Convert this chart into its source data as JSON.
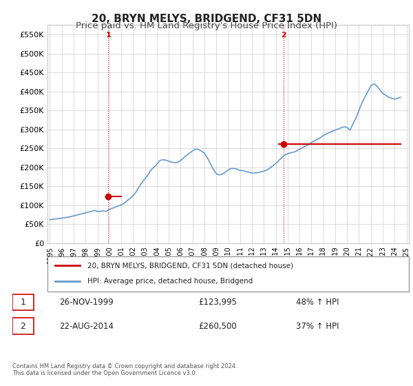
{
  "title": "20, BRYN MELYS, BRIDGEND, CF31 5DN",
  "subtitle": "Price paid vs. HM Land Registry's House Price Index (HPI)",
  "title_fontsize": 11,
  "subtitle_fontsize": 9.5,
  "xlabel": "",
  "ylabel": "",
  "ylim": [
    0,
    575000
  ],
  "yticks": [
    0,
    50000,
    100000,
    150000,
    200000,
    250000,
    300000,
    350000,
    400000,
    450000,
    500000,
    550000
  ],
  "ytick_labels": [
    "£0",
    "£50K",
    "£100K",
    "£150K",
    "£200K",
    "£250K",
    "£300K",
    "£350K",
    "£400K",
    "£450K",
    "£500K",
    "£550K"
  ],
  "background_color": "#ffffff",
  "plot_bg_color": "#ffffff",
  "grid_color": "#cccccc",
  "red_color": "#cc0000",
  "blue_color": "#6699cc",
  "legend_label_red": "20, BRYN MELYS, BRIDGEND, CF31 5DN (detached house)",
  "legend_label_blue": "HPI: Average price, detached house, Bridgend",
  "sale1_label": "1",
  "sale1_date": "26-NOV-1999",
  "sale1_price": "£123,995",
  "sale1_pct": "48% ↑ HPI",
  "sale2_label": "2",
  "sale2_date": "22-AUG-2014",
  "sale2_price": "£260,500",
  "sale2_pct": "37% ↑ HPI",
  "footer": "Contains HM Land Registry data © Crown copyright and database right 2024.\nThis data is licensed under the Open Government Licence v3.0.",
  "sale1_x": 1999.9,
  "sale1_y": 123995,
  "sale2_x": 2014.65,
  "sale2_y": 260500,
  "vline1_x": 1999.9,
  "vline2_x": 2014.65,
  "hpi_data_x": [
    1995.0,
    1995.25,
    1995.5,
    1995.75,
    1996.0,
    1996.25,
    1996.5,
    1996.75,
    1997.0,
    1997.25,
    1997.5,
    1997.75,
    1998.0,
    1998.25,
    1998.5,
    1998.75,
    1999.0,
    1999.25,
    1999.5,
    1999.75,
    2000.0,
    2000.25,
    2000.5,
    2000.75,
    2001.0,
    2001.25,
    2001.5,
    2001.75,
    2002.0,
    2002.25,
    2002.5,
    2002.75,
    2003.0,
    2003.25,
    2003.5,
    2003.75,
    2004.0,
    2004.25,
    2004.5,
    2004.75,
    2005.0,
    2005.25,
    2005.5,
    2005.75,
    2006.0,
    2006.25,
    2006.5,
    2006.75,
    2007.0,
    2007.25,
    2007.5,
    2007.75,
    2008.0,
    2008.25,
    2008.5,
    2008.75,
    2009.0,
    2009.25,
    2009.5,
    2009.75,
    2010.0,
    2010.25,
    2010.5,
    2010.75,
    2011.0,
    2011.25,
    2011.5,
    2011.75,
    2012.0,
    2012.25,
    2012.5,
    2012.75,
    2013.0,
    2013.25,
    2013.5,
    2013.75,
    2014.0,
    2014.25,
    2014.5,
    2014.75,
    2015.0,
    2015.25,
    2015.5,
    2015.75,
    2016.0,
    2016.25,
    2016.5,
    2016.75,
    2017.0,
    2017.25,
    2017.5,
    2017.75,
    2018.0,
    2018.25,
    2018.5,
    2018.75,
    2019.0,
    2019.25,
    2019.5,
    2019.75,
    2020.0,
    2020.25,
    2020.5,
    2020.75,
    2021.0,
    2021.25,
    2021.5,
    2021.75,
    2022.0,
    2022.25,
    2022.5,
    2022.75,
    2023.0,
    2023.25,
    2023.5,
    2023.75,
    2024.0,
    2024.25,
    2024.5
  ],
  "hpi_data_y": [
    62000,
    63000,
    64000,
    65000,
    66000,
    67000,
    68500,
    70000,
    72000,
    74000,
    76000,
    78000,
    80000,
    82000,
    84000,
    86500,
    83600,
    84000,
    85000,
    84000,
    89000,
    92000,
    95000,
    98000,
    101000,
    105000,
    112000,
    118000,
    125000,
    135000,
    148000,
    160000,
    170000,
    180000,
    193000,
    200000,
    208000,
    218000,
    220000,
    219000,
    216000,
    214000,
    212000,
    213000,
    218000,
    225000,
    232000,
    238000,
    243000,
    248000,
    247000,
    243000,
    237000,
    225000,
    210000,
    195000,
    183000,
    180000,
    182000,
    187000,
    193000,
    197000,
    197000,
    195000,
    192000,
    191000,
    189000,
    187000,
    185000,
    185000,
    186000,
    188000,
    190000,
    193000,
    198000,
    204000,
    210000,
    218000,
    225000,
    232000,
    236000,
    238000,
    240000,
    243000,
    248000,
    252000,
    256000,
    260000,
    265000,
    270000,
    274000,
    278000,
    284000,
    288000,
    292000,
    295000,
    298000,
    301000,
    304000,
    307000,
    305000,
    298000,
    315000,
    330000,
    350000,
    370000,
    385000,
    400000,
    415000,
    420000,
    415000,
    405000,
    395000,
    390000,
    385000,
    382000,
    380000,
    382000,
    385000
  ],
  "red_line_x": [
    1995.0,
    1995.25,
    1995.5,
    1995.75,
    1996.0,
    1996.25,
    1996.5,
    1996.75,
    1997.0,
    1997.25,
    1997.5,
    1997.75,
    1998.0,
    1998.25,
    1998.5,
    1998.75,
    1999.0,
    1999.25,
    1999.5,
    1999.75,
    2000.0,
    2000.25,
    2000.5,
    2000.75,
    2001.0,
    2001.25,
    2001.5,
    2001.75,
    2002.0,
    2002.25,
    2002.5,
    2002.75,
    2003.0,
    2003.25,
    2003.5,
    2003.75,
    2004.0,
    2004.25,
    2004.5,
    2004.75,
    2005.0,
    2005.25,
    2005.5,
    2005.75,
    2006.0,
    2006.25,
    2006.5,
    2006.75,
    2007.0,
    2007.25,
    2007.5,
    2007.75,
    2008.0,
    2008.25,
    2008.5,
    2008.75,
    2009.0,
    2009.25,
    2009.5,
    2009.75,
    2010.0,
    2010.25,
    2010.5,
    2010.75,
    2011.0,
    2011.25,
    2011.5,
    2011.75,
    2012.0,
    2012.25,
    2012.5,
    2012.75,
    2013.0,
    2013.25,
    2013.5,
    2013.75,
    2014.0,
    2014.25,
    2014.5,
    2014.75,
    2015.0,
    2015.25,
    2015.5,
    2015.75,
    2016.0,
    2016.25,
    2016.5,
    2016.75,
    2017.0,
    2017.25,
    2017.5,
    2017.75,
    2018.0,
    2018.25,
    2018.5,
    2018.75,
    2019.0,
    2019.25,
    2019.5,
    2019.75,
    2020.0,
    2020.25,
    2020.5,
    2020.75,
    2021.0,
    2021.25,
    2021.5,
    2021.75,
    2022.0,
    2022.25,
    2022.5,
    2022.75,
    2023.0,
    2023.25,
    2023.5,
    2023.75,
    2024.0,
    2024.25,
    2024.5
  ],
  "red_line_y": [
    null,
    null,
    null,
    null,
    null,
    null,
    null,
    null,
    null,
    null,
    null,
    null,
    null,
    null,
    null,
    null,
    null,
    null,
    null,
    123995,
    123995,
    123995,
    123995,
    123995,
    123995,
    null,
    null,
    null,
    null,
    null,
    null,
    null,
    null,
    null,
    null,
    null,
    null,
    null,
    null,
    null,
    null,
    null,
    null,
    null,
    null,
    null,
    null,
    null,
    null,
    null,
    null,
    null,
    null,
    null,
    null,
    null,
    null,
    null,
    null,
    null,
    null,
    null,
    null,
    null,
    null,
    null,
    null,
    null,
    null,
    null,
    null,
    null,
    null,
    null,
    null,
    null,
    null,
    260500,
    260500,
    260500,
    260500,
    260500,
    260500,
    260500,
    260500,
    260500,
    260500,
    260500,
    260500,
    260500,
    260500,
    260500,
    260500,
    260500,
    260500,
    260500,
    260500,
    260500,
    260500,
    260500,
    260500,
    260500,
    260500,
    260500,
    260500,
    260500,
    260500,
    260500,
    260500,
    260500,
    260500,
    260500,
    260500,
    260500,
    260500,
    260500,
    260500,
    260500,
    260500,
    260500
  ],
  "xtick_years": [
    1995,
    1996,
    1997,
    1998,
    1999,
    2000,
    2001,
    2002,
    2003,
    2004,
    2005,
    2006,
    2007,
    2008,
    2009,
    2010,
    2011,
    2012,
    2013,
    2014,
    2015,
    2016,
    2017,
    2018,
    2019,
    2020,
    2021,
    2022,
    2023,
    2024,
    2025
  ]
}
